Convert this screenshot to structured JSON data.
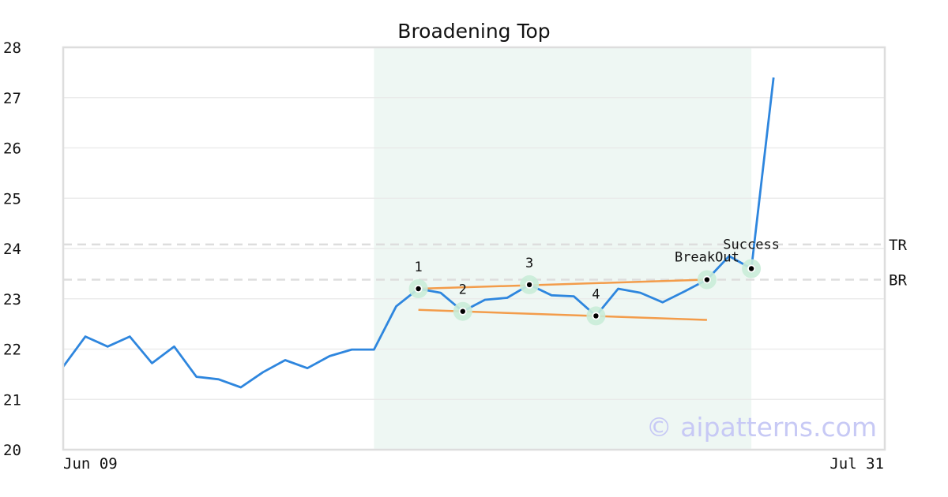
{
  "chart_data": {
    "type": "line",
    "title": "Broadening Top",
    "x_start_label": "Jun 09",
    "x_end_label": "Jul 31",
    "ylim": [
      20,
      28
    ],
    "yticks": [
      20,
      21,
      22,
      23,
      24,
      25,
      26,
      27,
      28
    ],
    "grid": true,
    "series": [
      {
        "values": [
          21.65,
          22.25,
          22.05,
          22.25,
          21.72,
          22.05,
          21.45,
          21.4,
          21.24,
          21.54,
          21.78,
          21.62,
          21.86,
          21.99,
          21.99,
          22.85,
          23.2,
          23.12,
          22.75,
          22.98,
          23.02,
          23.28,
          23.07,
          23.05,
          22.66,
          23.2,
          23.12,
          22.93,
          23.15,
          23.38,
          23.85,
          23.6,
          27.4
        ],
        "color": "#2e86de"
      }
    ],
    "pattern_region": {
      "start_index": 14,
      "end_index": 31,
      "color": "#eef7f3"
    },
    "key_points": [
      {
        "label": "1",
        "index": 16,
        "value": 23.2
      },
      {
        "label": "2",
        "index": 18,
        "value": 22.75
      },
      {
        "label": "3",
        "index": 21,
        "value": 23.28
      },
      {
        "label": "4",
        "index": 24,
        "value": 22.66
      },
      {
        "label": "BreakOut",
        "index": 29,
        "value": 23.38
      },
      {
        "label": "Success",
        "index": 31,
        "value": 23.6
      }
    ],
    "trendlines": [
      {
        "from": [
          16,
          23.2
        ],
        "to": [
          29,
          23.38
        ],
        "color": "#f39c4a"
      },
      {
        "from": [
          16,
          22.78
        ],
        "to": [
          29,
          22.58
        ],
        "color": "#f39c4a"
      }
    ],
    "hlines": [
      {
        "label": "TR",
        "value": 24.08
      },
      {
        "label": "BR",
        "value": 23.38
      }
    ],
    "watermark": "© aipatterns.com"
  }
}
